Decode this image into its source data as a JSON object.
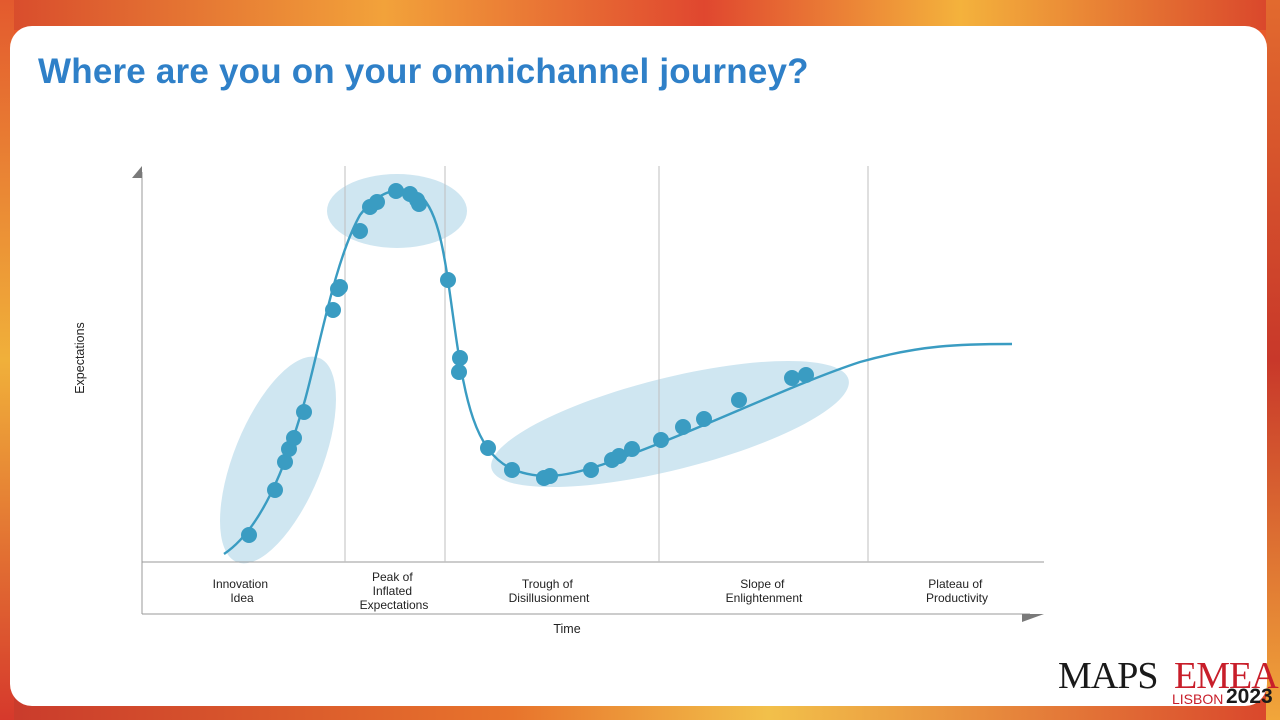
{
  "title": "Where are you on your omnichannel journey?",
  "chart": {
    "y_axis_label": "Expectations",
    "x_axis_label": "Time",
    "phases": [
      {
        "lines": [
          "Innovation",
          "Idea"
        ]
      },
      {
        "lines": [
          "Peak of",
          "Inflated",
          "Expectations"
        ]
      },
      {
        "lines": [
          "Trough of",
          "Disillusionment"
        ]
      },
      {
        "lines": [
          "Slope of",
          "Enlightenment"
        ]
      },
      {
        "lines": [
          "Plateau of",
          "Productivity"
        ]
      }
    ],
    "colors": {
      "curve": "#3a9cc2",
      "point": "#3a9cc2",
      "highlight": "#cfe6f1",
      "grid": "#bfbfbf"
    }
  },
  "logo": {
    "maps": "MAPS",
    "emea": "EMEA",
    "lisbon": "LISBON",
    "year": "2023"
  }
}
